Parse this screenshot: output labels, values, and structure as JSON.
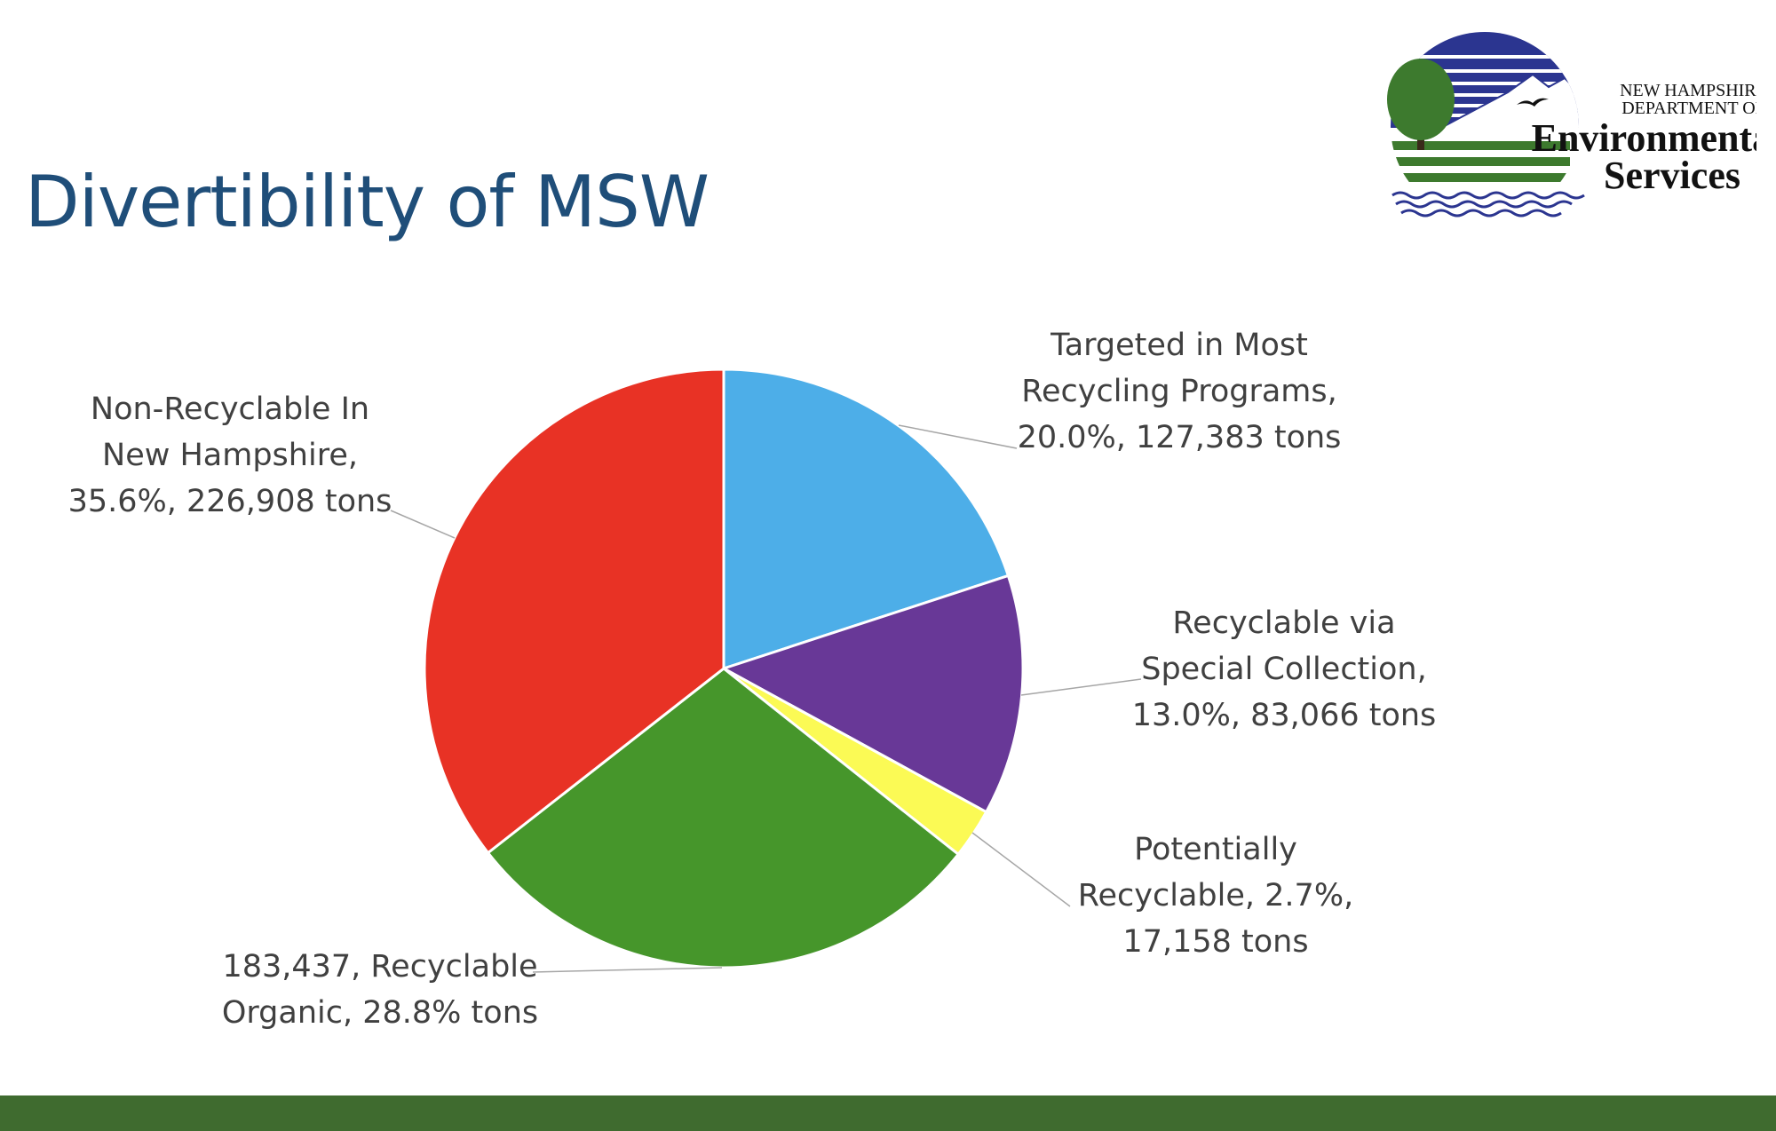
{
  "slide": {
    "title": "Divertibility of MSW",
    "title_color": "#1f4e79",
    "footer_color": "#3f6b2f"
  },
  "logo": {
    "line1": "NEW HAMPSHIRE",
    "line2": "DEPARTMENT OF",
    "line3": "Environmental",
    "line4": "Services",
    "sky_color": "#2b3590",
    "tree_color": "#3d7a2e",
    "water_color": "#2b3590"
  },
  "chart_data": {
    "type": "pie",
    "title": "",
    "start_angle_deg": 0,
    "direction": "clockwise",
    "slices": [
      {
        "name": "Targeted in Most Recycling Programs",
        "percent": 20.0,
        "tons": 127383,
        "color": "#4daee8",
        "label_lines": [
          "Targeted in Most",
          "Recycling Programs,",
          "20.0%, 127,383 tons"
        ]
      },
      {
        "name": "Recyclable via Special Collection",
        "percent": 13.0,
        "tons": 83066,
        "color": "#683897",
        "label_lines": [
          "Recyclable via",
          "Special Collection,",
          "13.0%, 83,066 tons"
        ]
      },
      {
        "name": "Potentially Recyclable",
        "percent": 2.7,
        "tons": 17158,
        "color": "#fbfa55",
        "label_lines": [
          "Potentially",
          "Recyclable, 2.7%,",
          "17,158 tons"
        ]
      },
      {
        "name": "Recyclable Organic",
        "percent": 28.8,
        "tons": 183437,
        "color": "#46962b",
        "label_lines": [
          "183,437, Recyclable",
          "Organic, 28.8% tons"
        ]
      },
      {
        "name": "Non-Recyclable In New Hampshire",
        "percent": 35.6,
        "tons": 226908,
        "color": "#e83225",
        "label_lines": [
          "Non-Recyclable In",
          "New Hampshire,",
          "35.6%, 226,908 tons"
        ]
      }
    ]
  }
}
